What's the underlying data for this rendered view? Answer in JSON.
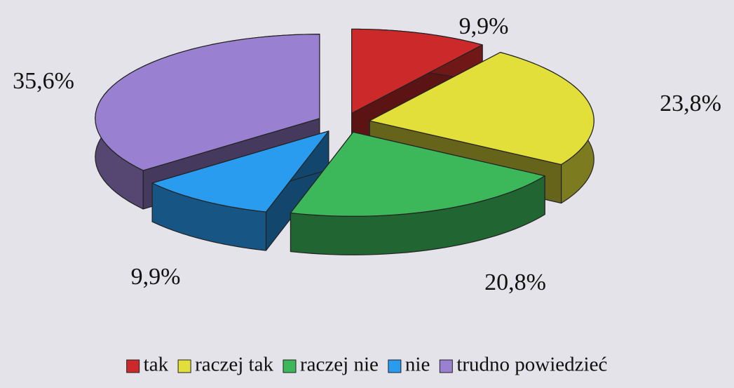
{
  "chart_data": {
    "type": "pie3d",
    "categories": [
      "tak",
      "raczej tak",
      "raczej nie",
      "nie",
      "trudno powiedzieć"
    ],
    "values": [
      9.9,
      23.8,
      20.8,
      9.9,
      35.6
    ],
    "value_labels": [
      "9,9%",
      "23,8%",
      "20,8%",
      "9,9%",
      "35,6%"
    ],
    "colors": [
      "#cc2a2a",
      "#e3df3a",
      "#3cb85a",
      "#2a9cf0",
      "#9a80d0"
    ],
    "legend": "bottom"
  }
}
